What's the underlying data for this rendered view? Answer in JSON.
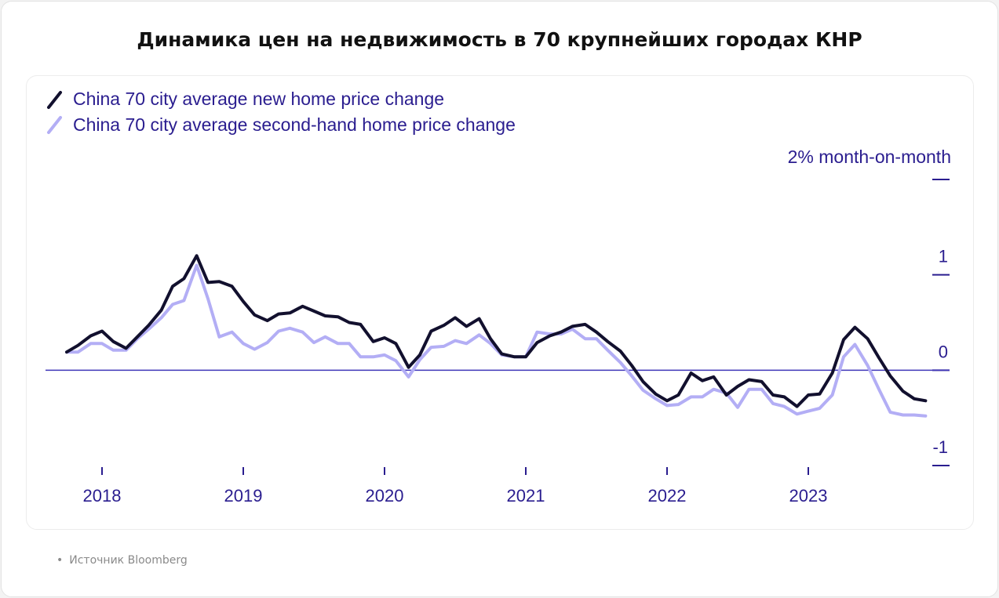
{
  "page": {
    "title": "Динамика цен на недвижимость в 70 крупнейших городах КНР",
    "source": "Источник Bloomberg"
  },
  "colors": {
    "text": "#2a1d8f",
    "new_home": "#12102e",
    "second_hand": "#b3aef5",
    "zero_line": "#3f35b8"
  },
  "chart_data": {
    "type": "line",
    "title": "",
    "ylabel": "2% month-on-month",
    "ylim": [
      -1,
      2
    ],
    "yticks": [
      {
        "value": 2,
        "label": ""
      },
      {
        "value": 1,
        "label": "1"
      },
      {
        "value": 0,
        "label": "0"
      },
      {
        "value": -1,
        "label": "-1"
      }
    ],
    "xlim": [
      2017.6,
      2024.0
    ],
    "xticks": [
      {
        "value": 2018,
        "label": "2018"
      },
      {
        "value": 2019,
        "label": "2019"
      },
      {
        "value": 2020,
        "label": "2020"
      },
      {
        "value": 2021,
        "label": "2021"
      },
      {
        "value": 2022,
        "label": "2022"
      },
      {
        "value": 2023,
        "label": "2023"
      }
    ],
    "legend_position": "top-left",
    "series": [
      {
        "name": "China 70 city average new home price change",
        "color": "#12102e",
        "points": [
          [
            2017.75,
            0.19
          ],
          [
            2017.83,
            0.26
          ],
          [
            2017.92,
            0.36
          ],
          [
            2018.0,
            0.41
          ],
          [
            2018.08,
            0.3
          ],
          [
            2018.17,
            0.23
          ],
          [
            2018.25,
            0.35
          ],
          [
            2018.33,
            0.47
          ],
          [
            2018.42,
            0.63
          ],
          [
            2018.5,
            0.88
          ],
          [
            2018.58,
            0.96
          ],
          [
            2018.67,
            1.2
          ],
          [
            2018.75,
            0.92
          ],
          [
            2018.83,
            0.93
          ],
          [
            2018.92,
            0.88
          ],
          [
            2019.0,
            0.72
          ],
          [
            2019.08,
            0.58
          ],
          [
            2019.17,
            0.52
          ],
          [
            2019.25,
            0.59
          ],
          [
            2019.33,
            0.6
          ],
          [
            2019.42,
            0.67
          ],
          [
            2019.5,
            0.62
          ],
          [
            2019.58,
            0.57
          ],
          [
            2019.67,
            0.56
          ],
          [
            2019.75,
            0.5
          ],
          [
            2019.83,
            0.48
          ],
          [
            2019.92,
            0.3
          ],
          [
            2020.0,
            0.34
          ],
          [
            2020.08,
            0.28
          ],
          [
            2020.17,
            0.03
          ],
          [
            2020.25,
            0.16
          ],
          [
            2020.33,
            0.41
          ],
          [
            2020.42,
            0.47
          ],
          [
            2020.5,
            0.55
          ],
          [
            2020.58,
            0.46
          ],
          [
            2020.67,
            0.54
          ],
          [
            2020.75,
            0.33
          ],
          [
            2020.83,
            0.17
          ],
          [
            2020.92,
            0.14
          ],
          [
            2021.0,
            0.14
          ],
          [
            2021.08,
            0.29
          ],
          [
            2021.17,
            0.36
          ],
          [
            2021.25,
            0.4
          ],
          [
            2021.33,
            0.46
          ],
          [
            2021.42,
            0.48
          ],
          [
            2021.5,
            0.4
          ],
          [
            2021.58,
            0.3
          ],
          [
            2021.67,
            0.2
          ],
          [
            2021.75,
            0.05
          ],
          [
            2021.83,
            -0.12
          ],
          [
            2021.92,
            -0.25
          ],
          [
            2022.0,
            -0.32
          ],
          [
            2022.08,
            -0.26
          ],
          [
            2022.17,
            -0.03
          ],
          [
            2022.25,
            -0.11
          ],
          [
            2022.33,
            -0.07
          ],
          [
            2022.42,
            -0.26
          ],
          [
            2022.5,
            -0.17
          ],
          [
            2022.58,
            -0.1
          ],
          [
            2022.67,
            -0.12
          ],
          [
            2022.75,
            -0.26
          ],
          [
            2022.83,
            -0.28
          ],
          [
            2022.92,
            -0.38
          ],
          [
            2023.0,
            -0.26
          ],
          [
            2023.08,
            -0.25
          ],
          [
            2023.17,
            -0.03
          ],
          [
            2023.25,
            0.32
          ],
          [
            2023.33,
            0.45
          ],
          [
            2023.42,
            0.33
          ],
          [
            2023.5,
            0.13
          ],
          [
            2023.58,
            -0.06
          ],
          [
            2023.67,
            -0.22
          ],
          [
            2023.75,
            -0.3
          ],
          [
            2023.83,
            -0.32
          ]
        ]
      },
      {
        "name": "China 70 city average second-hand home price change",
        "color": "#b3aef5",
        "points": [
          [
            2017.75,
            0.19
          ],
          [
            2017.83,
            0.19
          ],
          [
            2017.92,
            0.28
          ],
          [
            2018.0,
            0.28
          ],
          [
            2018.08,
            0.21
          ],
          [
            2018.17,
            0.21
          ],
          [
            2018.25,
            0.33
          ],
          [
            2018.33,
            0.43
          ],
          [
            2018.42,
            0.55
          ],
          [
            2018.5,
            0.69
          ],
          [
            2018.58,
            0.73
          ],
          [
            2018.67,
            1.1
          ],
          [
            2018.75,
            0.75
          ],
          [
            2018.83,
            0.35
          ],
          [
            2018.92,
            0.4
          ],
          [
            2019.0,
            0.28
          ],
          [
            2019.08,
            0.22
          ],
          [
            2019.17,
            0.29
          ],
          [
            2019.25,
            0.41
          ],
          [
            2019.33,
            0.44
          ],
          [
            2019.42,
            0.4
          ],
          [
            2019.5,
            0.29
          ],
          [
            2019.58,
            0.35
          ],
          [
            2019.67,
            0.28
          ],
          [
            2019.75,
            0.28
          ],
          [
            2019.83,
            0.14
          ],
          [
            2019.92,
            0.14
          ],
          [
            2020.0,
            0.16
          ],
          [
            2020.08,
            0.1
          ],
          [
            2020.17,
            -0.07
          ],
          [
            2020.25,
            0.11
          ],
          [
            2020.33,
            0.24
          ],
          [
            2020.42,
            0.25
          ],
          [
            2020.5,
            0.31
          ],
          [
            2020.58,
            0.28
          ],
          [
            2020.67,
            0.37
          ],
          [
            2020.75,
            0.28
          ],
          [
            2020.83,
            0.16
          ],
          [
            2020.92,
            0.14
          ],
          [
            2021.0,
            0.14
          ],
          [
            2021.08,
            0.4
          ],
          [
            2021.17,
            0.38
          ],
          [
            2021.25,
            0.38
          ],
          [
            2021.33,
            0.43
          ],
          [
            2021.42,
            0.33
          ],
          [
            2021.5,
            0.33
          ],
          [
            2021.58,
            0.21
          ],
          [
            2021.67,
            0.08
          ],
          [
            2021.75,
            -0.06
          ],
          [
            2021.83,
            -0.21
          ],
          [
            2021.92,
            -0.3
          ],
          [
            2022.0,
            -0.37
          ],
          [
            2022.08,
            -0.36
          ],
          [
            2022.17,
            -0.28
          ],
          [
            2022.25,
            -0.28
          ],
          [
            2022.33,
            -0.2
          ],
          [
            2022.42,
            -0.24
          ],
          [
            2022.5,
            -0.39
          ],
          [
            2022.58,
            -0.2
          ],
          [
            2022.67,
            -0.2
          ],
          [
            2022.75,
            -0.35
          ],
          [
            2022.83,
            -0.38
          ],
          [
            2022.92,
            -0.46
          ],
          [
            2023.0,
            -0.43
          ],
          [
            2023.08,
            -0.4
          ],
          [
            2023.17,
            -0.26
          ],
          [
            2023.25,
            0.14
          ],
          [
            2023.33,
            0.27
          ],
          [
            2023.42,
            0.05
          ],
          [
            2023.5,
            -0.2
          ],
          [
            2023.58,
            -0.44
          ],
          [
            2023.67,
            -0.47
          ],
          [
            2023.75,
            -0.47
          ],
          [
            2023.83,
            -0.48
          ]
        ]
      }
    ]
  }
}
